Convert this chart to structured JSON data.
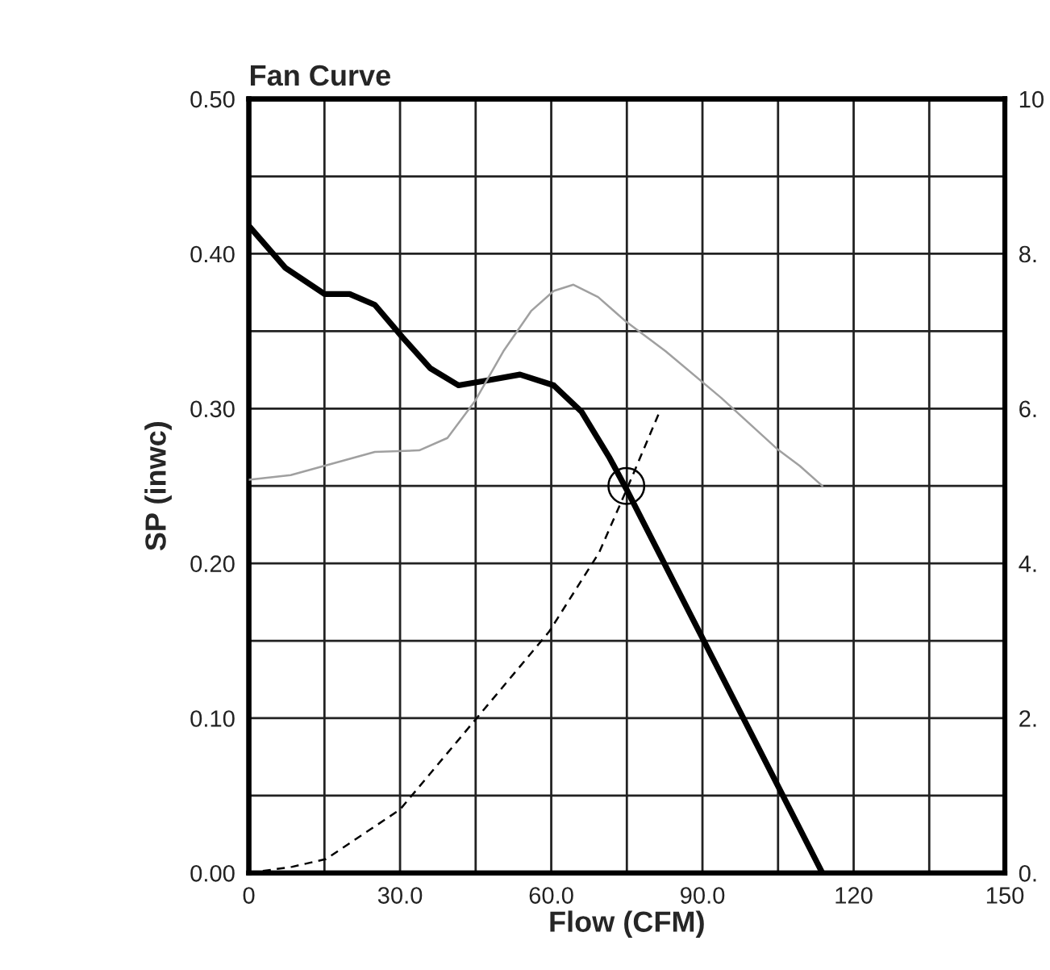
{
  "chart_data": {
    "type": "line",
    "title": "Fan Curve",
    "xlabel": "Flow (CFM)",
    "ylabel": "SP (inwc)",
    "xlim": [
      0,
      150
    ],
    "ylim": [
      0,
      0.5
    ],
    "y2lim": [
      0,
      10
    ],
    "xticks": [
      0,
      {
        "value": 15,
        "label": null
      },
      {
        "value": 30,
        "label": "30.0"
      },
      {
        "value": 45,
        "label": null
      },
      {
        "value": 60,
        "label": "60.0"
      },
      {
        "value": 75,
        "label": null
      },
      {
        "value": 90,
        "label": "90.0"
      },
      {
        "value": 105,
        "label": null
      },
      120,
      {
        "value": 135,
        "label": null
      },
      150
    ],
    "yticks": [
      {
        "value": 0,
        "label": "0.00"
      },
      {
        "value": 0.05,
        "label": null
      },
      {
        "value": 0.1,
        "label": "0.10"
      },
      {
        "value": 0.15,
        "label": null
      },
      {
        "value": 0.2,
        "label": "0.20"
      },
      {
        "value": 0.25,
        "label": null
      },
      {
        "value": 0.3,
        "label": "0.30"
      },
      {
        "value": 0.35,
        "label": null
      },
      {
        "value": 0.4,
        "label": "0.40"
      },
      {
        "value": 0.45,
        "label": null
      },
      {
        "value": 0.5,
        "label": "0.50"
      }
    ],
    "y2ticks": [
      {
        "value": 0,
        "label": "0."
      },
      {
        "value": 2,
        "label": "2."
      },
      {
        "value": 4,
        "label": "4."
      },
      {
        "value": 6,
        "label": "6."
      },
      {
        "value": 8,
        "label": "8."
      },
      {
        "value": 10,
        "label": "10"
      }
    ],
    "grid": true,
    "series": [
      {
        "color": "#a0a0a0",
        "axis": "y2",
        "line_style": "solid",
        "x": [
          0,
          8.3,
          25,
          33.8,
          39.4,
          44.9,
          50.5,
          56,
          60.5,
          64.4,
          69.3,
          74.9,
          82.7,
          93.7,
          104.8,
          109.3,
          113.8
        ],
        "values": [
          5.08,
          5.14,
          5.44,
          5.46,
          5.62,
          6.1,
          6.74,
          7.26,
          7.52,
          7.6,
          7.44,
          7.12,
          6.74,
          6.14,
          5.48,
          5.26,
          5.0
        ]
      },
      {
        "color": "#000000",
        "line_style": "dashed",
        "x": [
          0,
          8.6,
          15.3,
          30,
          45.2,
          59.6,
          69.5,
          75,
          81.5
        ],
        "values": [
          0,
          0.004,
          0.009,
          0.041,
          0.1,
          0.156,
          0.207,
          0.248,
          0.298
        ]
      },
      {
        "color": "#000000",
        "line_style": "solid",
        "x": [
          0,
          7.2,
          15,
          20,
          25,
          30.5,
          36,
          41.6,
          47,
          53.8,
          60.5,
          66,
          71.6,
          74.9,
          113.8
        ],
        "values": [
          0.418,
          0.391,
          0.374,
          0.374,
          0.367,
          0.346,
          0.326,
          0.315,
          0.318,
          0.322,
          0.315,
          0.298,
          0.268,
          0.248,
          0
        ]
      },
      {
        "type": "scatter",
        "color": "#000000",
        "marker": "circle",
        "x": [
          74.9
        ],
        "values": [
          0.25
        ]
      }
    ]
  }
}
